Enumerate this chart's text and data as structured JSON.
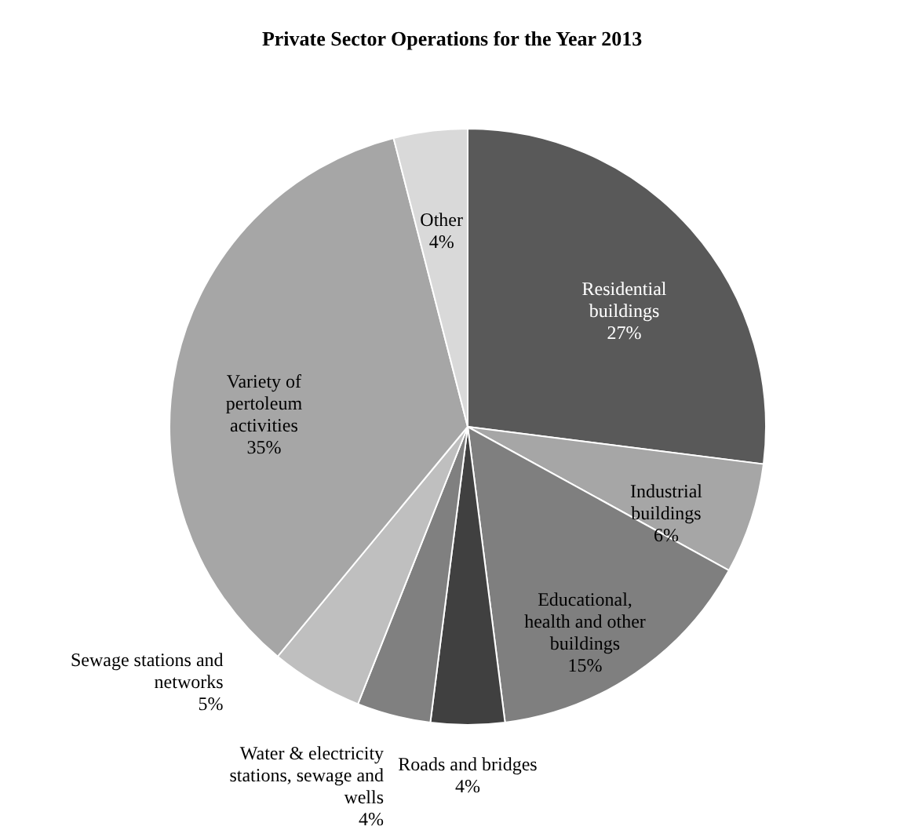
{
  "chart_data": {
    "type": "pie",
    "title": "Private Sector Operations for the Year 2013",
    "categories": [
      "Residential buildings",
      "Industrial buildings",
      "Educational, health and other buildings",
      "Roads and bridges",
      "Water & electricity stations, sewage and wells",
      "Sewage stations and networks",
      "Variety of pertoleum activities",
      "Other"
    ],
    "values": [
      27,
      6,
      15,
      4,
      4,
      5,
      35,
      4
    ],
    "colors": [
      "#595959",
      "#a6a6a6",
      "#7f7f7f",
      "#404040",
      "#808080",
      "#bfbfbf",
      "#a6a6a6",
      "#d9d9d9"
    ],
    "value_labels": [
      "27%",
      "6%",
      "15%",
      "4%",
      "4%",
      "5%",
      "35%",
      "4%"
    ]
  }
}
